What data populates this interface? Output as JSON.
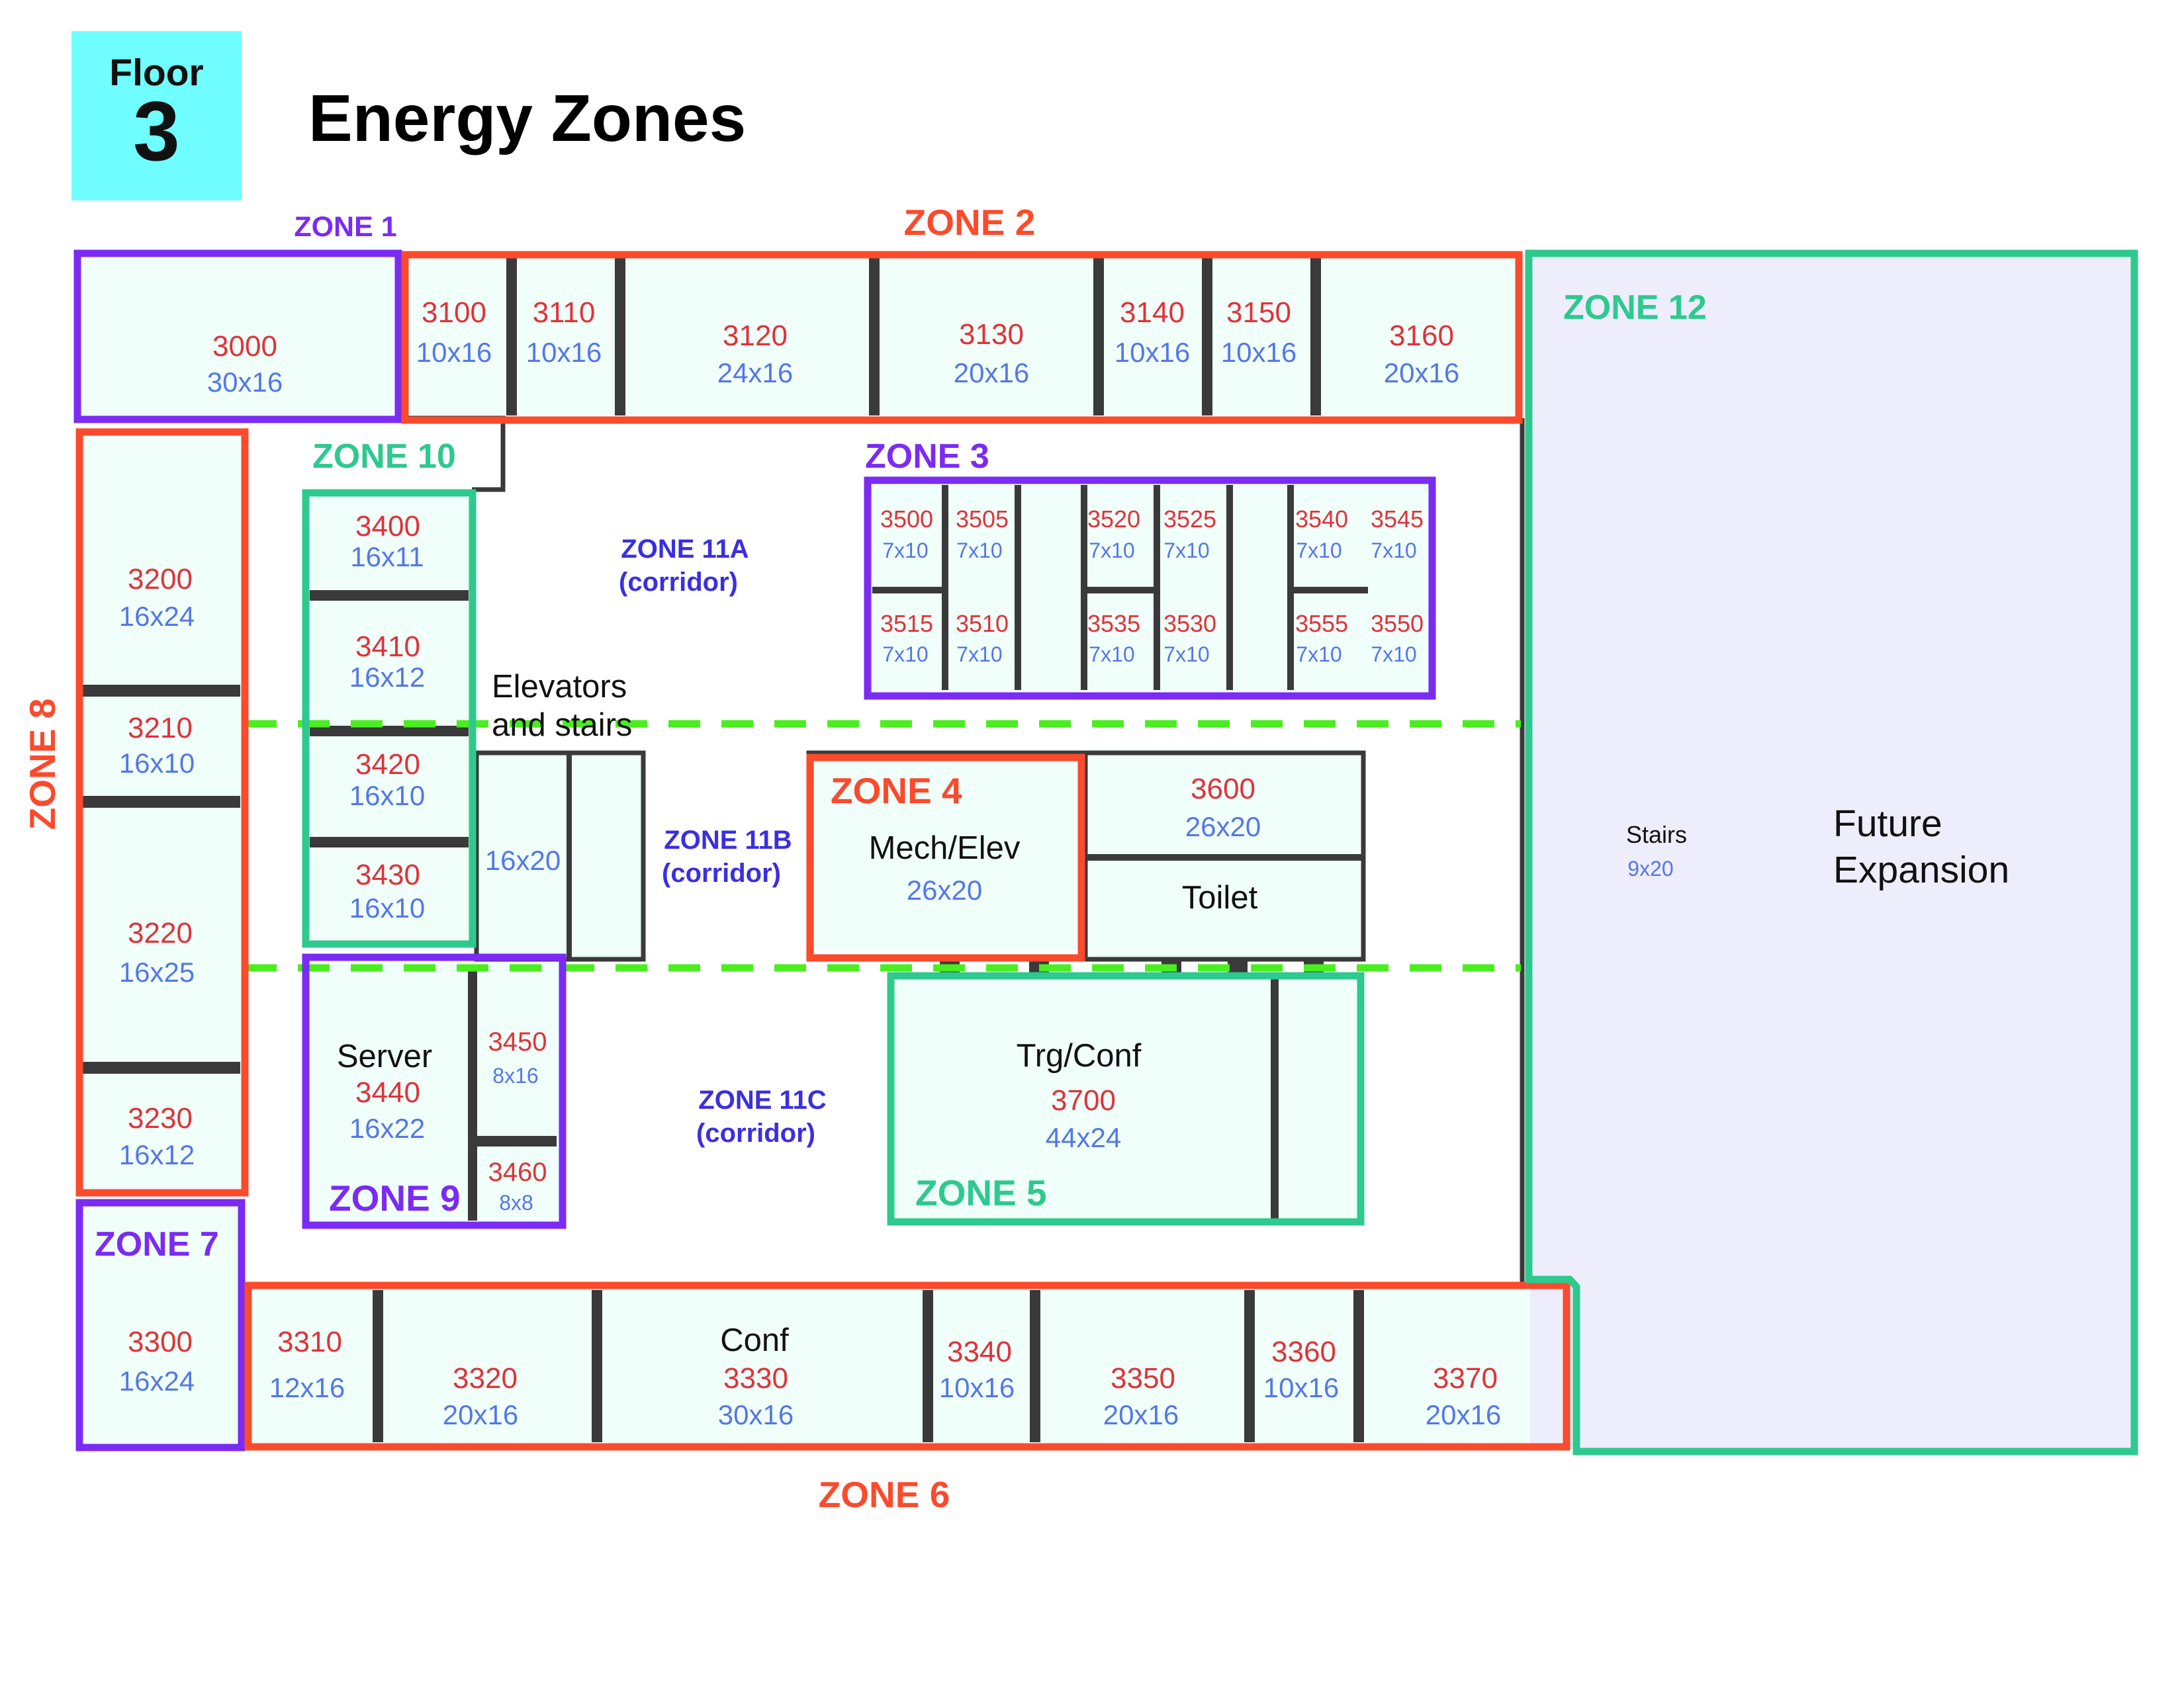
{
  "header": {
    "floor_label": "Floor",
    "floor_number": "3",
    "title": "Energy Zones"
  },
  "colors": {
    "red_zone": "#fb4a2c",
    "purple_zone": "#7b2bf3",
    "green_zone": "#2dc98e",
    "room_fill": "#f0fff9",
    "expansion_fill": "#ededfb",
    "corridor_divider": "#4aee1f",
    "wall": "#3a3a3a",
    "room_number": "#e0323a",
    "room_dims": "#5577e6",
    "corridor_label": "#3a2fe0"
  },
  "zones": {
    "z1": "ZONE 1",
    "z2": "ZONE 2",
    "z3": "ZONE 3",
    "z4": "ZONE 4",
    "z5": "ZONE 5",
    "z6": "ZONE 6",
    "z7": "ZONE 7",
    "z8": "ZONE 8",
    "z9": "ZONE 9",
    "z10": "ZONE 10",
    "z12": "ZONE 12",
    "z11a": "ZONE 11A",
    "z11a_sub": "(corridor)",
    "z11b": "ZONE 11B",
    "z11b_sub": "(corridor)",
    "z11c": "ZONE 11C",
    "z11c_sub": "(corridor)"
  },
  "rooms": {
    "r3000": {
      "num": "3000",
      "dims": "30x16"
    },
    "r3100": {
      "num": "3100",
      "dims": "10x16"
    },
    "r3110": {
      "num": "3110",
      "dims": "10x16"
    },
    "r3120": {
      "num": "3120",
      "dims": "24x16"
    },
    "r3130": {
      "num": "3130",
      "dims": "20x16"
    },
    "r3140": {
      "num": "3140",
      "dims": "10x16"
    },
    "r3150": {
      "num": "3150",
      "dims": "10x16"
    },
    "r3160": {
      "num": "3160",
      "dims": "20x16"
    },
    "r3200": {
      "num": "3200",
      "dims": "16x24"
    },
    "r3210": {
      "num": "3210",
      "dims": "16x10"
    },
    "r3220": {
      "num": "3220",
      "dims": "16x25"
    },
    "r3230": {
      "num": "3230",
      "dims": "16x12"
    },
    "r3300": {
      "num": "3300",
      "dims": "16x24"
    },
    "r3310": {
      "num": "3310",
      "dims": "12x16"
    },
    "r3320": {
      "num": "3320",
      "dims": "20x16"
    },
    "r3330": {
      "name": "Conf",
      "num": "3330",
      "dims": "30x16"
    },
    "r3340": {
      "num": "3340",
      "dims": "10x16"
    },
    "r3350": {
      "num": "3350",
      "dims": "20x16"
    },
    "r3360": {
      "num": "3360",
      "dims": "10x16"
    },
    "r3370": {
      "num": "3370",
      "dims": "20x16"
    },
    "r3400": {
      "num": "3400",
      "dims": "16x11"
    },
    "r3410": {
      "num": "3410",
      "dims": "16x12"
    },
    "r3420": {
      "num": "3420",
      "dims": "16x10"
    },
    "r3430": {
      "num": "3430",
      "dims": "16x10"
    },
    "r3440": {
      "name": "Server",
      "num": "3440",
      "dims": "16x22"
    },
    "r3450": {
      "num": "3450",
      "dims": "8x16"
    },
    "r3460": {
      "num": "3460",
      "dims": "8x8"
    },
    "r3500": {
      "num": "3500",
      "dims": "7x10"
    },
    "r3505": {
      "num": "3505",
      "dims": "7x10"
    },
    "r3520": {
      "num": "3520",
      "dims": "7x10"
    },
    "r3525": {
      "num": "3525",
      "dims": "7x10"
    },
    "r3540": {
      "num": "3540",
      "dims": "7x10"
    },
    "r3545": {
      "num": "3545",
      "dims": "7x10"
    },
    "r3515": {
      "num": "3515",
      "dims": "7x10"
    },
    "r3510": {
      "num": "3510",
      "dims": "7x10"
    },
    "r3535": {
      "num": "3535",
      "dims": "7x10"
    },
    "r3530": {
      "num": "3530",
      "dims": "7x10"
    },
    "r3555": {
      "num": "3555",
      "dims": "7x10"
    },
    "r3550": {
      "num": "3550",
      "dims": "7x10"
    },
    "r3600": {
      "num": "3600",
      "dims": "26x20"
    },
    "r3700": {
      "name": "Trg/Conf",
      "num": "3700",
      "dims": "44x24"
    },
    "mech": {
      "name": "Mech/Elev",
      "dims": "26x20"
    },
    "toilet": {
      "name": "Toilet"
    },
    "elev_stairs": {
      "line1": "Elevators",
      "line2": "and stairs",
      "dims": "16x20"
    },
    "stairs": {
      "name": "Stairs",
      "dims": "9x20"
    },
    "expansion": {
      "line1": "Future",
      "line2": "Expansion"
    }
  }
}
